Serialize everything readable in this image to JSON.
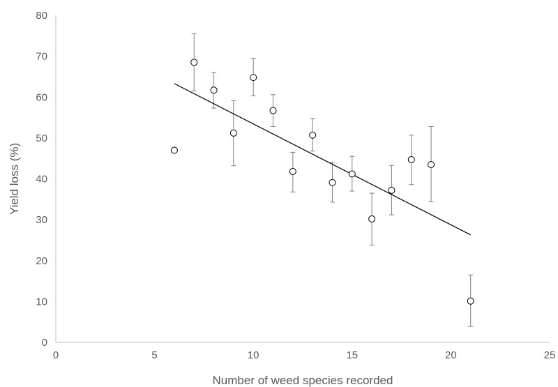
{
  "chart_data": {
    "type": "scatter",
    "title": "",
    "xlabel": "Number of weed species recorded",
    "ylabel": "Yield loss (%)",
    "xlim": [
      0,
      25
    ],
    "ylim": [
      0,
      80
    ],
    "xticks": [
      "0",
      "5",
      "10",
      "15",
      "20",
      "25"
    ],
    "yticks": [
      "0",
      "10",
      "20",
      "30",
      "40",
      "50",
      "60",
      "70",
      "80"
    ],
    "grid": false,
    "legend": "none",
    "points": [
      {
        "x": 6,
        "y": 47,
        "err_low": null,
        "err_high": null
      },
      {
        "x": 7,
        "y": 68.5,
        "err_low": 61.5,
        "err_high": 75.5
      },
      {
        "x": 8,
        "y": 61.7,
        "err_low": 57.3,
        "err_high": 66
      },
      {
        "x": 9,
        "y": 51.2,
        "err_low": 43.2,
        "err_high": 59.1
      },
      {
        "x": 10,
        "y": 64.8,
        "err_low": 60.3,
        "err_high": 69.5
      },
      {
        "x": 11,
        "y": 56.7,
        "err_low": 52.8,
        "err_high": 60.6
      },
      {
        "x": 12,
        "y": 41.8,
        "err_low": 36.8,
        "err_high": 46.5
      },
      {
        "x": 13,
        "y": 50.7,
        "err_low": 46.8,
        "err_high": 54.8
      },
      {
        "x": 14,
        "y": 39.1,
        "err_low": 34.3,
        "err_high": 44
      },
      {
        "x": 15,
        "y": 41.2,
        "err_low": 37,
        "err_high": 45.5
      },
      {
        "x": 16,
        "y": 30.2,
        "err_low": 23.8,
        "err_high": 36.5
      },
      {
        "x": 17,
        "y": 37.2,
        "err_low": 31.2,
        "err_high": 43.3
      },
      {
        "x": 18,
        "y": 44.7,
        "err_low": 38.6,
        "err_high": 50.7
      },
      {
        "x": 19,
        "y": 43.5,
        "err_low": 34.4,
        "err_high": 52.8
      },
      {
        "x": 21,
        "y": 10.1,
        "err_low": 3.9,
        "err_high": 16.5
      }
    ],
    "trendline": {
      "x": [
        6,
        21
      ],
      "y": [
        63.3,
        26.3
      ]
    },
    "colors": {
      "axis": "#bfbfbf",
      "text": "#595959",
      "marker_stroke": "#000000",
      "marker_fill": "#ffffff",
      "error_bar": "#7f7f7f",
      "trendline": "#000000"
    }
  }
}
